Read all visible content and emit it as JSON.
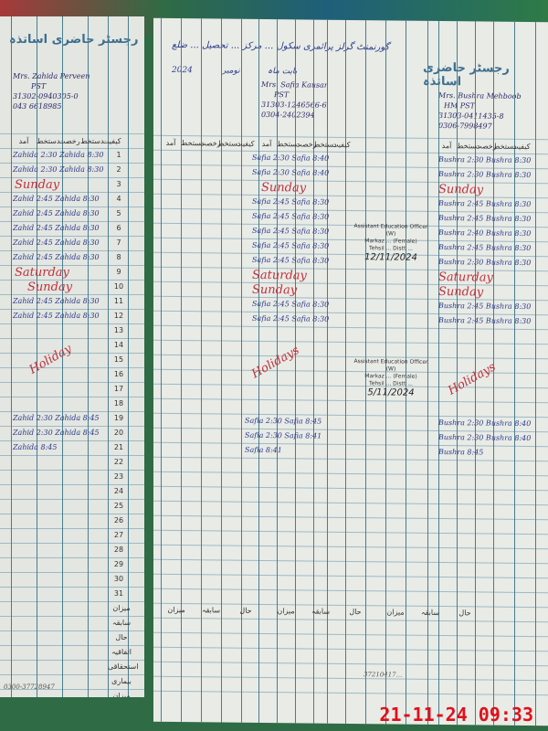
{
  "register_title": "رجسٹر حاضری اساتذہ",
  "right_header": {
    "line1": "گورنمنٹ گرلز پرائمری سکول ... مرکز ... تحصیل ... ضلع",
    "year": "2024",
    "month_label": "بابت ماہ",
    "month": "نومبر"
  },
  "teachers": [
    {
      "name": "Mrs. Zahida Perveen",
      "post": "PST",
      "cnic": "31302-0940305-0",
      "phone": "043 6618985"
    },
    {
      "name": "Mrs. Safia Kausar",
      "post": "PST",
      "cnic": "31303-1246566-6",
      "phone": "0304-2402394"
    },
    {
      "name": "Mrs. Bushra Mehboob",
      "post": "HM PST",
      "cnic": "31303-0411435-8",
      "phone": "0306-7998497"
    }
  ],
  "days": [
    "1",
    "2",
    "3",
    "4",
    "5",
    "6",
    "7",
    "8",
    "9",
    "10",
    "11",
    "12",
    "13",
    "14",
    "15",
    "16",
    "17",
    "18",
    "19",
    "20",
    "21",
    "22",
    "23",
    "24",
    "25",
    "26",
    "27",
    "28",
    "29",
    "30",
    "31"
  ],
  "col_headers": [
    "آمد",
    "دستخط",
    "رخصت",
    "دستخط",
    "کیفیت"
  ],
  "footer_labels": [
    "میزان",
    "سابقہ",
    "حال",
    "اتفاقیہ",
    "استحقاقی",
    "بیماری",
    "میزان"
  ],
  "left_entries": [
    {
      "day": 1,
      "text": "Zahida 2:30 Zahida 8:30"
    },
    {
      "day": 2,
      "text": "Zahida 2:30 Zahida 8:30"
    },
    {
      "day": 4,
      "text": "Zahid 2:45 Zahida 8:30"
    },
    {
      "day": 5,
      "text": "Zahid 2:45 Zahida 8:30"
    },
    {
      "day": 6,
      "text": "Zahid 2:45 Zahida 8:30"
    },
    {
      "day": 7,
      "text": "Zahid 2:45 Zahida 8:30"
    },
    {
      "day": 8,
      "text": "Zahid 2:45 Zahida 8:30"
    },
    {
      "day": 11,
      "text": "Zahid 2:45 Zahida 8:30"
    },
    {
      "day": 12,
      "text": "Zahid 2:45 Zahida 8:30"
    },
    {
      "day": 19,
      "text": "Zahid 2:30 Zahida 8:45"
    },
    {
      "day": 20,
      "text": "Zahid 2:30 Zahida 8:45"
    },
    {
      "day": 21,
      "text": "Zahida 8:45"
    }
  ],
  "safia_entries": [
    {
      "day": 1,
      "text": "Safia 2:30 Safia 8:40"
    },
    {
      "day": 2,
      "text": "Safia 2:30 Safia 8:40"
    },
    {
      "day": 4,
      "text": "Safia 2:45 Safia 8:30"
    },
    {
      "day": 5,
      "text": "Safia 2:45 Safia 8:30"
    },
    {
      "day": 6,
      "text": "Safia 2:45 Safia 8:30"
    },
    {
      "day": 7,
      "text": "Safia 2:45 Safia 8:30"
    },
    {
      "day": 8,
      "text": "Safia 2:45 Safia 8:30"
    },
    {
      "day": 11,
      "text": "Safia 2:45 Safia 8:30"
    },
    {
      "day": 12,
      "text": "Safia 2:45 Safia 8:30"
    },
    {
      "day": 19,
      "text": "Safia 2:30 Safia 8:45"
    },
    {
      "day": 20,
      "text": "Safia 2:30 Safia 8:41"
    },
    {
      "day": 21,
      "text": "Safia 8:41"
    }
  ],
  "bushra_entries": [
    {
      "day": 1,
      "text": "Bushra 2:30 Bushra 8:30"
    },
    {
      "day": 2,
      "text": "Bushra 2:30 Bushra 8:30"
    },
    {
      "day": 4,
      "text": "Bushra 2:45 Bushra 8:30"
    },
    {
      "day": 5,
      "text": "Bushra 2:45 Bushra 8:30"
    },
    {
      "day": 6,
      "text": "Bushra 2:40 Bushra 8:30"
    },
    {
      "day": 7,
      "text": "Bushra 2:45 Bushra 8:30"
    },
    {
      "day": 8,
      "text": "Bushra 2:30 Bushra 8:30"
    },
    {
      "day": 11,
      "text": "Bushra 2:45 Bushra 8:30"
    },
    {
      "day": 12,
      "text": "Bushra 2:45 Bushra 8:30"
    },
    {
      "day": 19,
      "text": "Bushra 2:30 Bushra 8:40"
    },
    {
      "day": 20,
      "text": "Bushra 2:30 Bushra 8:40"
    },
    {
      "day": 21,
      "text": "Bushra 8:45"
    }
  ],
  "marks": {
    "sunday": "Sunday",
    "saturday": "Saturday",
    "holiday": "Holidays",
    "holiday_left": "Holiday"
  },
  "stamps": [
    {
      "office": "Assistant Education Officer (W)",
      "markaz": "Markaz ... (Female)",
      "tehsil": "Tehsil ... Distt ...",
      "date": "12/11/2024"
    },
    {
      "office": "Assistant Education Officer (W)",
      "markaz": "Markaz ... (Female)",
      "tehsil": "Tehsil ... Distt ...",
      "date": "5/11/2024"
    }
  ],
  "footer_phone_left": "0300-37728947",
  "footer_phone_right": "37210417...",
  "timestamp": "21-11-24  09:33"
}
